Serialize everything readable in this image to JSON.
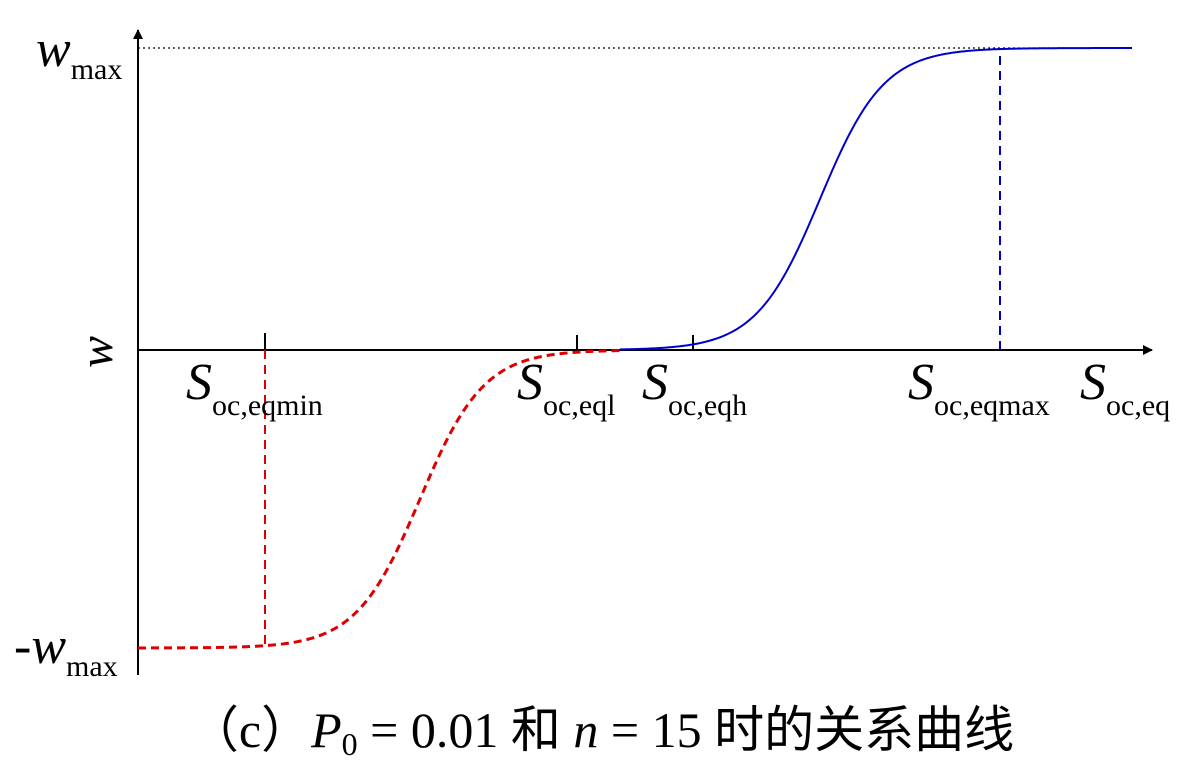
{
  "figure": {
    "y_axis_label": "w",
    "y_top_label": {
      "base": "w",
      "sub": "max"
    },
    "y_bottom_label": {
      "prefix": "-",
      "base": "w",
      "sub": "max"
    },
    "x_labels": [
      {
        "base": "S",
        "sub": "oc,eqmin"
      },
      {
        "base": "S",
        "sub": "oc,eql"
      },
      {
        "base": "S",
        "sub": "oc,eqh"
      },
      {
        "base": "S",
        "sub": "oc,eqmax"
      },
      {
        "base": "S",
        "sub": "oc,eq"
      }
    ],
    "colors": {
      "axis": "#000000",
      "positive_curve": "#0000cc",
      "negative_curve": "#dd0000",
      "wmax_guide": "#000000"
    },
    "styles": {
      "positive_curve": "solid",
      "negative_curve": "dashed",
      "drop_lines": "dashed"
    }
  },
  "caption": {
    "open": "（c）",
    "p_symbol": "P",
    "p_sub": "0",
    "eq1": " = 0.01 和 ",
    "n_symbol": "n",
    "eq2": " = 15 时的关系曲线"
  }
}
